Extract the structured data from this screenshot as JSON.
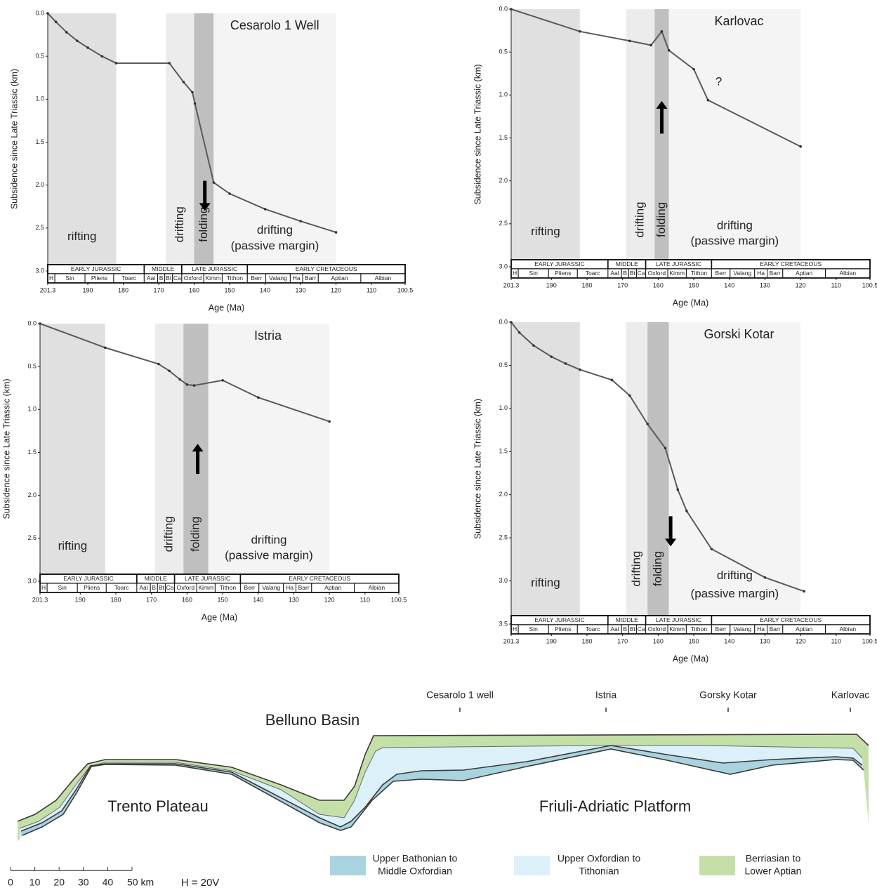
{
  "chart_data": [
    {
      "type": "line",
      "title": "Cesarolo 1 Well",
      "y_label": "Subsidence since Late Triassic (km)",
      "x_label": "Age (Ma)",
      "x": [
        201.3,
        199,
        196,
        193,
        190,
        186,
        182,
        167,
        163,
        160.5,
        159.8,
        154.5,
        150,
        140,
        130,
        120
      ],
      "values": [
        0,
        0.1,
        0.22,
        0.32,
        0.4,
        0.5,
        0.58,
        0.58,
        0.8,
        0.92,
        1.05,
        1.97,
        2.1,
        2.28,
        2.42,
        2.55
      ],
      "color": "#5a5a5a",
      "markers": true,
      "xlim": [
        201.3,
        100.5
      ],
      "ylim": [
        0,
        3
      ],
      "y_inverted": true,
      "xticks": [
        201.3,
        190,
        180,
        170,
        160,
        150,
        140,
        130,
        120,
        110,
        100.5
      ],
      "yticks": [
        {
          "value": 0,
          "label": "0.0"
        },
        {
          "value": 0.5,
          "label": "0.5"
        },
        {
          "value": 1,
          "label": "1.0"
        },
        {
          "value": 1.5,
          "label": "1.5"
        },
        {
          "value": 2,
          "label": "2.0"
        },
        {
          "value": 2.5,
          "label": "2.5"
        },
        {
          "value": 3,
          "label": "3.0"
        }
      ],
      "phases": [
        {
          "label": [
            "rifting"
          ],
          "from": 201.3,
          "to": 182,
          "color": "#e0e0e0",
          "orientation": "horizontal"
        },
        {
          "label": [
            "drifting"
          ],
          "from": 168,
          "to": 160,
          "color": "#ececec",
          "orientation": "vertical"
        },
        {
          "label": [
            "folding"
          ],
          "from": 160,
          "to": 154.5,
          "color": "#bfbfbf",
          "orientation": "vertical"
        },
        {
          "label": [
            "drifting",
            "(passive margin)"
          ],
          "from": 154.5,
          "to": 120,
          "color": "#f4f4f4",
          "orientation": "horizontal"
        }
      ],
      "arrow": {
        "direction": "down",
        "x": 157,
        "y": [
          1.95,
          2.3
        ]
      }
    },
    {
      "type": "line",
      "title": "Karlovac",
      "y_label": "Subsidence since Late Triassic (km)",
      "x_label": "Age (Ma)",
      "x": [
        201.3,
        182,
        168,
        162,
        159,
        157,
        150,
        146,
        120
      ],
      "values": [
        0,
        0.26,
        0.37,
        0.42,
        0.26,
        0.48,
        0.7,
        1.06,
        1.6
      ],
      "color": "#5a5a5a",
      "markers": true,
      "xlim": [
        201.3,
        100.5
      ],
      "ylim": [
        0,
        3
      ],
      "y_inverted": true,
      "xticks": [
        201.3,
        190,
        180,
        170,
        160,
        150,
        140,
        130,
        120,
        110,
        100.5
      ],
      "yticks": [
        {
          "value": 0,
          "label": "0.0"
        },
        {
          "value": 0.5,
          "label": "0.5"
        },
        {
          "value": 1,
          "label": "1.0"
        },
        {
          "value": 1.5,
          "label": "1.5"
        },
        {
          "value": 2,
          "label": "2.0"
        },
        {
          "value": 2.5,
          "label": "2.5"
        },
        {
          "value": 3,
          "label": "3.0"
        }
      ],
      "phases": [
        {
          "label": [
            "rifting"
          ],
          "from": 201.3,
          "to": 182,
          "color": "#e0e0e0",
          "orientation": "horizontal"
        },
        {
          "label": [
            "drifting"
          ],
          "from": 169,
          "to": 161,
          "color": "#ececec",
          "orientation": "vertical"
        },
        {
          "label": [
            "folding"
          ],
          "from": 161,
          "to": 157,
          "color": "#bfbfbf",
          "orientation": "vertical"
        },
        {
          "label": [
            "drifting",
            "(passive margin)"
          ],
          "from": 157,
          "to": 120,
          "color": "#f4f4f4",
          "orientation": "horizontal"
        }
      ],
      "arrow": {
        "direction": "up",
        "x": 159,
        "y": [
          1.07,
          1.45
        ]
      },
      "annotations": [
        {
          "text": "?",
          "x": 143,
          "y": 0.85
        }
      ]
    },
    {
      "type": "line",
      "title": "Istria",
      "y_label": "Subsidence since Late Triassic (km)",
      "x_label": "Age (Ma)",
      "x": [
        201.3,
        183,
        168,
        165,
        162,
        160,
        158,
        150,
        140,
        120
      ],
      "values": [
        0,
        0.28,
        0.47,
        0.55,
        0.65,
        0.71,
        0.72,
        0.66,
        0.86,
        1.14
      ],
      "color": "#5a5a5a",
      "markers": true,
      "xlim": [
        201.3,
        100.5
      ],
      "ylim": [
        0,
        3
      ],
      "y_inverted": true,
      "xticks": [
        201.3,
        190,
        180,
        170,
        160,
        150,
        140,
        130,
        120,
        110,
        100.5
      ],
      "yticks": [
        {
          "value": 0,
          "label": "0.0"
        },
        {
          "value": 0.5,
          "label": "0.5"
        },
        {
          "value": 1,
          "label": "1.0"
        },
        {
          "value": 1.5,
          "label": "1.5"
        },
        {
          "value": 2,
          "label": "2.0"
        },
        {
          "value": 2.5,
          "label": "2.5"
        },
        {
          "value": 3,
          "label": "3.0"
        }
      ],
      "phases": [
        {
          "label": [
            "rifting"
          ],
          "from": 201.3,
          "to": 183,
          "color": "#e0e0e0",
          "orientation": "horizontal"
        },
        {
          "label": [
            "drifting"
          ],
          "from": 169,
          "to": 161,
          "color": "#ececec",
          "orientation": "vertical"
        },
        {
          "label": [
            "folding"
          ],
          "from": 161,
          "to": 154,
          "color": "#bfbfbf",
          "orientation": "vertical"
        },
        {
          "label": [
            "drifting",
            "(passive margin)"
          ],
          "from": 154,
          "to": 120,
          "color": "#f4f4f4",
          "orientation": "horizontal"
        }
      ],
      "arrow": {
        "direction": "up",
        "x": 157,
        "y": [
          1.4,
          1.75
        ]
      }
    },
    {
      "type": "line",
      "title": "Gorski Kotar",
      "y_label": "Subsidence since Late Triassic (km)",
      "x_label": "Age (Ma)",
      "x": [
        201.3,
        199,
        195,
        190,
        186,
        182,
        173,
        168,
        163,
        158,
        154.5,
        152,
        145,
        130,
        119
      ],
      "values": [
        0,
        0.12,
        0.27,
        0.4,
        0.48,
        0.55,
        0.67,
        0.85,
        1.18,
        1.46,
        1.94,
        2.19,
        2.63,
        2.96,
        3.12
      ],
      "color": "#5a5a5a",
      "markers": true,
      "xlim": [
        201.3,
        100.5
      ],
      "ylim": [
        0,
        3.5
      ],
      "y_inverted": true,
      "xticks": [
        201.3,
        190,
        180,
        170,
        160,
        150,
        140,
        130,
        120,
        110,
        100.5
      ],
      "yticks": [
        {
          "value": 0,
          "label": "0.0"
        },
        {
          "value": 0.5,
          "label": "0.5"
        },
        {
          "value": 1,
          "label": "1.0"
        },
        {
          "value": 1.5,
          "label": "1.5"
        },
        {
          "value": 2,
          "label": "2.0"
        },
        {
          "value": 2.5,
          "label": "2.5"
        },
        {
          "value": 3,
          "label": "3.0"
        },
        {
          "value": 3.5,
          "label": "3.5"
        }
      ],
      "phases": [
        {
          "label": [
            "rifting"
          ],
          "from": 201.3,
          "to": 182,
          "color": "#e0e0e0",
          "orientation": "horizontal"
        },
        {
          "label": [
            "drifting"
          ],
          "from": 169,
          "to": 163,
          "color": "#ececec",
          "orientation": "vertical"
        },
        {
          "label": [
            "folding"
          ],
          "from": 163,
          "to": 157,
          "color": "#bfbfbf",
          "orientation": "vertical"
        },
        {
          "label": [
            "drifting",
            "(passive margin)"
          ],
          "from": 157,
          "to": 120,
          "color": "#f4f4f4",
          "orientation": "horizontal"
        }
      ],
      "arrow": {
        "direction": "down",
        "x": 156.5,
        "y": [
          2.25,
          2.6
        ]
      }
    }
  ],
  "timescale": {
    "epochs": [
      {
        "label": "EARLY JURASSIC",
        "from": 201.3,
        "to": 174.1
      },
      {
        "label": "MIDDLE",
        "from": 174.1,
        "to": 163.5
      },
      {
        "label": "LATE JURASSIC",
        "from": 163.5,
        "to": 145
      },
      {
        "label": "EARLY CRETACEOUS",
        "from": 145,
        "to": 100.5
      }
    ],
    "stages": [
      {
        "label": "H",
        "from": 201.3,
        "to": 199.3
      },
      {
        "label": "Sin",
        "from": 199.3,
        "to": 190.8
      },
      {
        "label": "Pliens",
        "from": 190.8,
        "to": 182.7
      },
      {
        "label": "Toarc",
        "from": 182.7,
        "to": 174.1
      },
      {
        "label": "Aal",
        "from": 174.1,
        "to": 170.3
      },
      {
        "label": "B",
        "from": 170.3,
        "to": 168.3
      },
      {
        "label": "Bt",
        "from": 168.3,
        "to": 166.1
      },
      {
        "label": "Ca",
        "from": 166.1,
        "to": 163.5
      },
      {
        "label": "Oxford",
        "from": 163.5,
        "to": 157.3
      },
      {
        "label": "Kimm",
        "from": 157.3,
        "to": 152.1
      },
      {
        "label": "Tithon",
        "from": 152.1,
        "to": 145
      },
      {
        "label": "Berr",
        "from": 145,
        "to": 139.8
      },
      {
        "label": "Valang",
        "from": 139.8,
        "to": 132.9
      },
      {
        "label": "Ha",
        "from": 132.9,
        "to": 129.4
      },
      {
        "label": "Barr",
        "from": 129.4,
        "to": 125
      },
      {
        "label": "Aptian",
        "from": 125,
        "to": 113
      },
      {
        "label": "Albian",
        "from": 113,
        "to": 100.5
      }
    ]
  },
  "cross_section": {
    "wells": [
      "Cesarolo 1 well",
      "Istria",
      "Gorsky Kotar",
      "Karlovac"
    ],
    "regions": [
      "Belluno Basin",
      "Trento Plateau",
      "Friuli-Adriatic Platform"
    ],
    "scale_bar": {
      "ticks": [
        0,
        10,
        20,
        30,
        40,
        {
          "value": 50,
          "label": "50 km"
        }
      ]
    },
    "exaggeration": "H = 20V",
    "legend": [
      {
        "label": [
          "Upper Bathonian to",
          "Middle Oxfordian"
        ],
        "color": "#a9d3df"
      },
      {
        "label": [
          "Upper Oxfordian to",
          "Tithonian"
        ],
        "color": "#dcf0fa"
      },
      {
        "label": [
          "Berriasian to",
          "Lower Aptian"
        ],
        "color": "#c5dfa9"
      }
    ]
  }
}
